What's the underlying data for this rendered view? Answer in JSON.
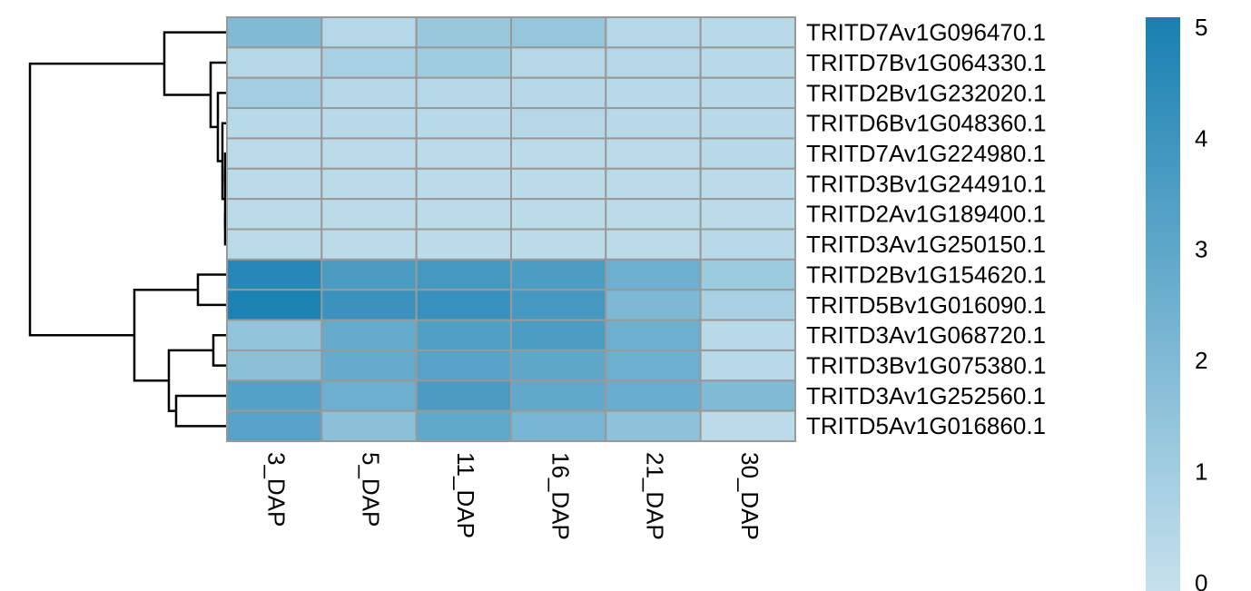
{
  "chart_data": {
    "type": "heatmap",
    "rows": [
      "TRITD7Av1G096470.1",
      "TRITD7Bv1G064330.1",
      "TRITD2Bv1G232020.1",
      "TRITD6Bv1G048360.1",
      "TRITD7Av1G224980.1",
      "TRITD3Bv1G244910.1",
      "TRITD2Av1G189400.1",
      "TRITD3Av1G250150.1",
      "TRITD2Bv1G154620.1",
      "TRITD5Bv1G016090.1",
      "TRITD3Av1G068720.1",
      "TRITD3Bv1G075380.1",
      "TRITD3Av1G252560.1",
      "TRITD5Av1G016860.1"
    ],
    "columns": [
      "3_DAP",
      "5_DAP",
      "11_DAP",
      "16_DAP",
      "21_DAP",
      "30_DAP"
    ],
    "values": [
      [
        2.0,
        0.5,
        1.3,
        1.4,
        0.5,
        0.4
      ],
      [
        0.5,
        0.9,
        1.1,
        0.5,
        0.5,
        0.4
      ],
      [
        1.0,
        0.5,
        0.5,
        0.5,
        0.4,
        0.4
      ],
      [
        0.4,
        0.4,
        0.4,
        0.5,
        0.4,
        0.4
      ],
      [
        0.3,
        0.3,
        0.3,
        0.3,
        0.3,
        0.4
      ],
      [
        0.3,
        0.3,
        0.3,
        0.3,
        0.3,
        0.3
      ],
      [
        0.3,
        0.3,
        0.3,
        0.3,
        0.3,
        0.3
      ],
      [
        0.3,
        0.3,
        0.3,
        0.3,
        0.3,
        0.4
      ],
      [
        4.6,
        3.6,
        3.7,
        3.5,
        2.6,
        1.2
      ],
      [
        4.9,
        4.0,
        4.1,
        3.7,
        2.1,
        0.8
      ],
      [
        1.5,
        2.8,
        3.4,
        3.5,
        2.6,
        0.4
      ],
      [
        1.7,
        2.8,
        3.2,
        3.0,
        2.6,
        0.4
      ],
      [
        3.3,
        2.6,
        3.6,
        2.9,
        2.7,
        2.0
      ],
      [
        3.2,
        1.7,
        2.9,
        2.2,
        1.6,
        0.3
      ]
    ],
    "zlim": [
      0,
      5
    ],
    "zticks": [
      0,
      1,
      2,
      3,
      4,
      5
    ],
    "colors": [
      "#c6e1ed",
      "#1880b1"
    ],
    "border_color": "#999999"
  }
}
